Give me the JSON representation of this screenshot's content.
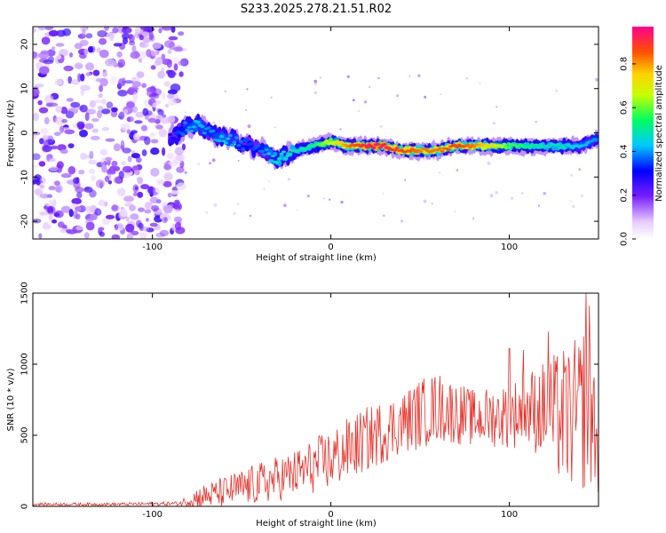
{
  "title": "S233.2025.278.21.51.R02",
  "chart_data": [
    {
      "type": "heatmap",
      "xlabel": "Height of straight line (km)",
      "ylabel": "Frequency (Hz)",
      "xlim": [
        -167,
        150
      ],
      "ylim": [
        -24,
        24
      ],
      "xticks": [
        -100,
        0,
        100
      ],
      "xtick_labels": [
        "-100",
        "0",
        "100"
      ],
      "yticks": [
        -20,
        -10,
        0,
        10,
        20
      ],
      "ytick_labels": [
        "-20",
        "-10",
        "0",
        "10",
        "20"
      ],
      "colorbar": {
        "label": "Normalized spectral amplitude",
        "range": [
          0,
          0.97
        ],
        "ticks": [
          0,
          0.2,
          0.4,
          0.6,
          0.8
        ],
        "tick_labels": [
          "0.0",
          "0.2",
          "0.4",
          "0.6",
          "0.8"
        ]
      },
      "ridge_trace": {
        "x": [
          -90,
          -82,
          -75,
          -68,
          -60,
          -52,
          -45,
          -38,
          -30,
          -25,
          -18,
          -10,
          0,
          10,
          20,
          30,
          40,
          50,
          60,
          70,
          80,
          90,
          100,
          110,
          120,
          130,
          140,
          150
        ],
        "frequency": [
          -1,
          1,
          2,
          0,
          -1,
          -2,
          -3,
          -4,
          -6,
          -5,
          -4,
          -3,
          -2,
          -3,
          -3,
          -3,
          -4,
          -4,
          -4,
          -3,
          -3,
          -3,
          -3,
          -3,
          -3,
          -3,
          -3,
          -1
        ],
        "amplitude": [
          0.3,
          0.4,
          0.45,
          0.4,
          0.45,
          0.4,
          0.35,
          0.4,
          0.5,
          0.5,
          0.5,
          0.55,
          0.7,
          0.85,
          0.95,
          0.95,
          0.9,
          0.85,
          0.85,
          0.9,
          0.85,
          0.75,
          0.6,
          0.55,
          0.5,
          0.5,
          0.45,
          0.4
        ]
      },
      "noise_region_x": [
        -167,
        -82
      ]
    },
    {
      "type": "line",
      "xlabel": "Height of straight line (km)",
      "ylabel": "SNR (10 * v/v)",
      "xlim": [
        -167,
        150
      ],
      "ylim": [
        0,
        1500
      ],
      "xticks": [
        -100,
        0,
        100
      ],
      "xtick_labels": [
        "-100",
        "0",
        "100"
      ],
      "yticks": [
        0,
        500,
        1000,
        1500
      ],
      "ytick_labels": [
        "0",
        "500",
        "1000",
        "1500"
      ],
      "series": [
        {
          "name": "SNR",
          "color": "#e8312a",
          "trend_x": [
            -167,
            -120,
            -85,
            -75,
            -60,
            -40,
            -20,
            0,
            20,
            40,
            50,
            60,
            80,
            100,
            110,
            120,
            130,
            140,
            145,
            150
          ],
          "trend_y": [
            15,
            15,
            20,
            60,
            100,
            160,
            230,
            330,
            470,
            590,
            650,
            700,
            620,
            640,
            680,
            680,
            620,
            650,
            800,
            380
          ],
          "noise_amplitude": [
            10,
            10,
            15,
            80,
            110,
            150,
            170,
            220,
            230,
            220,
            250,
            250,
            200,
            230,
            280,
            350,
            500,
            550,
            700,
            300
          ],
          "peaks": [
            {
              "x": 122,
              "y": 1230
            },
            {
              "x": 143,
              "y": 1510
            },
            {
              "x": 108,
              "y": 1100
            },
            {
              "x": 100,
              "y": 1110
            }
          ]
        }
      ]
    }
  ]
}
